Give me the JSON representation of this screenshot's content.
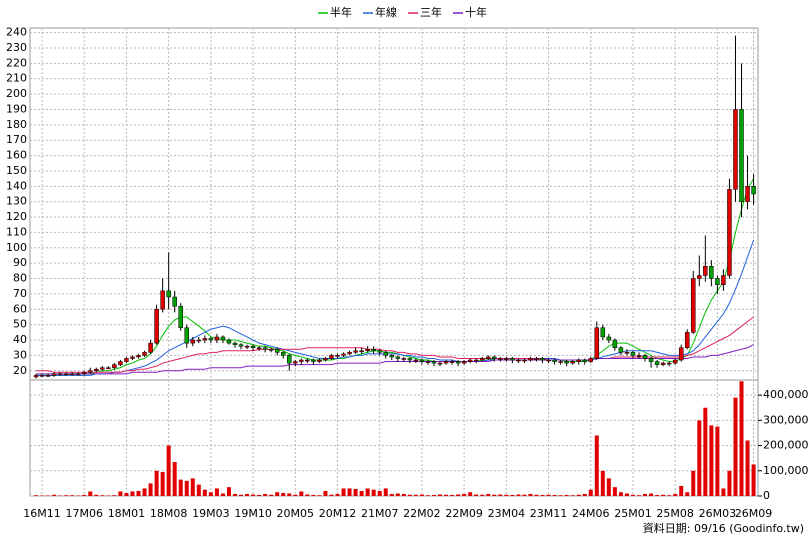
{
  "chart_data": [
    {
      "type": "candlestick",
      "legend": "top",
      "grid": true,
      "up_color": "#e00000",
      "down_color": "#00a000",
      "wick_color": "#000000",
      "note": "資料日期: 09/16 (Goodinfo.tw)",
      "categories": [
        null,
        "16M11",
        null,
        null,
        null,
        null,
        null,
        null,
        "17M06",
        null,
        null,
        null,
        null,
        null,
        null,
        "18M01",
        null,
        null,
        null,
        null,
        null,
        null,
        "18M08",
        null,
        null,
        null,
        null,
        null,
        null,
        "19M03",
        null,
        null,
        null,
        null,
        null,
        null,
        "19M10",
        null,
        null,
        null,
        null,
        null,
        null,
        "20M05",
        null,
        null,
        null,
        null,
        null,
        null,
        "20M12",
        null,
        null,
        null,
        null,
        null,
        null,
        "21M07",
        null,
        null,
        null,
        null,
        null,
        null,
        "22M02",
        null,
        null,
        null,
        null,
        null,
        null,
        "22M09",
        null,
        null,
        null,
        null,
        null,
        null,
        "23M04",
        null,
        null,
        null,
        null,
        null,
        null,
        "23M11",
        null,
        null,
        null,
        null,
        null,
        null,
        "24M06",
        null,
        null,
        null,
        null,
        null,
        null,
        "25M01",
        null,
        null,
        null,
        null,
        null,
        null,
        "25M08",
        null,
        null,
        null,
        null,
        null,
        null,
        "26M03",
        null,
        null,
        null,
        null,
        null,
        "26M09"
      ],
      "open": [
        16,
        17,
        17,
        17,
        18,
        18,
        18,
        18,
        18,
        19,
        20,
        21,
        22,
        22,
        24,
        26,
        28,
        29,
        30,
        32,
        38,
        60,
        72,
        68,
        62,
        48,
        38,
        40,
        40,
        41,
        40,
        42,
        40,
        38,
        37,
        36,
        36,
        35,
        35,
        34,
        34,
        32,
        30,
        25,
        26,
        27,
        27,
        26,
        27,
        28,
        30,
        30,
        31,
        32,
        33,
        33,
        34,
        33,
        32,
        30,
        29,
        28,
        28,
        27,
        27,
        26,
        26,
        25,
        25,
        26,
        26,
        25,
        26,
        27,
        27,
        28,
        29,
        28,
        28,
        28,
        27,
        27,
        27,
        28,
        28,
        27,
        27,
        26,
        26,
        25,
        26,
        27,
        26,
        28,
        48,
        42,
        40,
        35,
        32,
        32,
        30,
        30,
        28,
        26,
        24,
        25,
        25,
        27,
        35,
        45,
        80,
        82,
        88,
        80,
        76,
        82,
        138,
        190,
        130,
        140
      ],
      "high": [
        18,
        18,
        18,
        19,
        19,
        19,
        19,
        19,
        20,
        22,
        22,
        23,
        23,
        25,
        27,
        29,
        30,
        31,
        33,
        40,
        63,
        80,
        97,
        72,
        64,
        50,
        42,
        42,
        43,
        42,
        44,
        43,
        41,
        39,
        38,
        37,
        37,
        36,
        36,
        35,
        35,
        33,
        31,
        27,
        28,
        28,
        28,
        28,
        29,
        31,
        31,
        32,
        33,
        35,
        35,
        36,
        36,
        34,
        33,
        31,
        30,
        29,
        29,
        28,
        28,
        27,
        27,
        26,
        27,
        27,
        27,
        27,
        28,
        28,
        29,
        30,
        30,
        29,
        29,
        29,
        28,
        28,
        29,
        29,
        29,
        28,
        28,
        27,
        27,
        27,
        28,
        28,
        29,
        52,
        50,
        44,
        41,
        36,
        34,
        33,
        32,
        31,
        29,
        27,
        26,
        26,
        28,
        37,
        47,
        85,
        95,
        108,
        92,
        82,
        86,
        145,
        238,
        220,
        160,
        148
      ],
      "low": [
        15,
        16,
        16,
        16,
        17,
        17,
        17,
        17,
        17,
        18,
        19,
        20,
        21,
        21,
        23,
        25,
        27,
        28,
        29,
        31,
        37,
        58,
        60,
        58,
        46,
        35,
        36,
        38,
        38,
        38,
        38,
        38,
        37,
        35,
        34,
        34,
        33,
        33,
        32,
        32,
        30,
        28,
        20,
        23,
        24,
        25,
        24,
        25,
        26,
        27,
        28,
        29,
        30,
        31,
        31,
        32,
        31,
        30,
        28,
        27,
        26,
        26,
        25,
        25,
        24,
        24,
        23,
        23,
        24,
        24,
        23,
        24,
        25,
        25,
        26,
        27,
        26,
        26,
        26,
        25,
        25,
        25,
        26,
        26,
        25,
        25,
        24,
        24,
        23,
        24,
        24,
        24,
        25,
        27,
        40,
        38,
        33,
        30,
        30,
        28,
        28,
        26,
        22,
        22,
        23,
        23,
        24,
        26,
        34,
        44,
        75,
        78,
        75,
        70,
        72,
        80,
        130,
        120,
        125,
        128
      ],
      "close": [
        17,
        17,
        17,
        18,
        18,
        18,
        18,
        18,
        19,
        20,
        21,
        22,
        22,
        24,
        26,
        28,
        29,
        30,
        32,
        38,
        60,
        72,
        68,
        62,
        48,
        38,
        40,
        40,
        41,
        40,
        42,
        40,
        38,
        37,
        36,
        36,
        35,
        35,
        34,
        34,
        32,
        30,
        25,
        26,
        27,
        27,
        26,
        27,
        28,
        30,
        30,
        31,
        32,
        33,
        33,
        34,
        33,
        32,
        30,
        29,
        28,
        28,
        27,
        27,
        26,
        26,
        25,
        25,
        26,
        26,
        25,
        26,
        27,
        27,
        28,
        29,
        28,
        28,
        28,
        27,
        27,
        27,
        28,
        28,
        27,
        27,
        26,
        26,
        25,
        26,
        27,
        26,
        28,
        48,
        42,
        40,
        35,
        32,
        32,
        30,
        30,
        28,
        26,
        24,
        25,
        25,
        27,
        35,
        45,
        80,
        82,
        88,
        80,
        76,
        82,
        138,
        190,
        130,
        140,
        135
      ],
      "series": [
        {
          "name": "半年",
          "color": "#00c000",
          "values": [
            17,
            17,
            17,
            17,
            17,
            17,
            18,
            18,
            18,
            18,
            19,
            20,
            20,
            21,
            22,
            24,
            25,
            27,
            28,
            31,
            36,
            43,
            49,
            53,
            55,
            55,
            52,
            49,
            46,
            42,
            41,
            40,
            40,
            40,
            39,
            38,
            37,
            36,
            36,
            35,
            34,
            33,
            31,
            30,
            29,
            28,
            27,
            27,
            27,
            27,
            28,
            28,
            29,
            30,
            31,
            32,
            33,
            33,
            32,
            32,
            31,
            30,
            29,
            28,
            27,
            27,
            26,
            26,
            26,
            26,
            26,
            26,
            26,
            26,
            27,
            27,
            28,
            28,
            28,
            28,
            28,
            28,
            28,
            28,
            27,
            27,
            27,
            27,
            26,
            26,
            26,
            26,
            27,
            30,
            33,
            36,
            38,
            38,
            38,
            36,
            34,
            32,
            30,
            28,
            27,
            26,
            26,
            28,
            30,
            38,
            48,
            58,
            66,
            72,
            78,
            92,
            110,
            125,
            138,
            145
          ]
        },
        {
          "name": "年線",
          "color": "#2060e0",
          "values": [
            17,
            17,
            17,
            17,
            17,
            17,
            17,
            17,
            17,
            17,
            18,
            18,
            18,
            19,
            19,
            20,
            21,
            22,
            23,
            25,
            27,
            30,
            33,
            35,
            37,
            39,
            41,
            43,
            45,
            47,
            48,
            49,
            48,
            46,
            44,
            42,
            40,
            38,
            37,
            36,
            35,
            34,
            33,
            32,
            31,
            30,
            29,
            28,
            28,
            28,
            28,
            29,
            29,
            30,
            30,
            31,
            31,
            31,
            31,
            31,
            31,
            30,
            30,
            29,
            29,
            28,
            28,
            27,
            27,
            27,
            26,
            26,
            26,
            26,
            26,
            27,
            27,
            27,
            27,
            27,
            27,
            27,
            27,
            28,
            28,
            28,
            28,
            27,
            27,
            27,
            27,
            27,
            27,
            28,
            29,
            30,
            31,
            32,
            33,
            33,
            33,
            33,
            33,
            32,
            31,
            30,
            30,
            30,
            31,
            33,
            37,
            42,
            47,
            52,
            57,
            64,
            73,
            83,
            94,
            105
          ]
        },
        {
          "name": "三年",
          "color": "#e02060",
          "values": [
            20,
            20,
            20,
            19,
            19,
            19,
            19,
            19,
            19,
            19,
            19,
            19,
            19,
            19,
            19,
            20,
            20,
            21,
            21,
            22,
            23,
            25,
            26,
            27,
            28,
            29,
            30,
            31,
            31,
            32,
            32,
            33,
            33,
            33,
            33,
            33,
            33,
            34,
            34,
            34,
            34,
            34,
            34,
            34,
            34,
            35,
            35,
            35,
            35,
            35,
            35,
            35,
            35,
            35,
            35,
            34,
            34,
            34,
            33,
            33,
            32,
            32,
            31,
            31,
            30,
            30,
            30,
            29,
            29,
            29,
            28,
            28,
            28,
            28,
            28,
            28,
            28,
            28,
            28,
            28,
            28,
            28,
            28,
            28,
            28,
            27,
            27,
            27,
            27,
            27,
            27,
            27,
            27,
            28,
            28,
            28,
            29,
            29,
            29,
            29,
            29,
            29,
            29,
            29,
            29,
            29,
            29,
            29,
            30,
            31,
            33,
            35,
            37,
            39,
            41,
            43,
            46,
            49,
            52,
            55
          ]
        },
        {
          "name": "十年",
          "color": "#8020c0",
          "values": [
            18,
            18,
            18,
            18,
            18,
            18,
            18,
            18,
            18,
            18,
            18,
            18,
            18,
            18,
            18,
            18,
            19,
            19,
            19,
            19,
            19,
            20,
            20,
            20,
            20,
            21,
            21,
            21,
            21,
            22,
            22,
            22,
            22,
            22,
            22,
            23,
            23,
            23,
            23,
            23,
            23,
            23,
            24,
            24,
            24,
            24,
            24,
            24,
            24,
            24,
            25,
            25,
            25,
            25,
            25,
            25,
            25,
            25,
            26,
            26,
            26,
            26,
            26,
            26,
            26,
            26,
            26,
            26,
            26,
            26,
            26,
            26,
            26,
            26,
            26,
            26,
            27,
            27,
            27,
            27,
            27,
            27,
            27,
            27,
            27,
            27,
            27,
            27,
            27,
            27,
            27,
            27,
            27,
            28,
            28,
            28,
            28,
            28,
            28,
            28,
            28,
            28,
            28,
            28,
            28,
            28,
            28,
            28,
            28,
            29,
            29,
            29,
            30,
            30,
            31,
            32,
            33,
            34,
            35,
            37
          ]
        }
      ],
      "ylim": [
        14,
        243
      ],
      "yticks": [
        20,
        30,
        40,
        50,
        60,
        70,
        80,
        90,
        100,
        110,
        120,
        130,
        140,
        150,
        160,
        170,
        180,
        190,
        200,
        210,
        220,
        230,
        240
      ]
    },
    {
      "type": "bar",
      "color": "#e00000",
      "grid": true,
      "values": [
        3000,
        2000,
        2000,
        5000,
        2000,
        3000,
        3000,
        2000,
        4000,
        18000,
        5000,
        3000,
        2000,
        3000,
        18000,
        12000,
        18000,
        20000,
        30000,
        50000,
        100000,
        95000,
        200000,
        135000,
        65000,
        60000,
        70000,
        45000,
        25000,
        15000,
        30000,
        10000,
        35000,
        8000,
        5000,
        8000,
        6000,
        4000,
        8000,
        5000,
        15000,
        12000,
        10000,
        5000,
        18000,
        6000,
        4000,
        3000,
        20000,
        5000,
        8000,
        30000,
        30000,
        28000,
        20000,
        30000,
        25000,
        20000,
        30000,
        8000,
        10000,
        8000,
        5000,
        5000,
        6000,
        3000,
        4000,
        6000,
        5000,
        4000,
        6000,
        8000,
        15000,
        6000,
        5000,
        8000,
        5000,
        6000,
        5000,
        4000,
        6000,
        5000,
        8000,
        5000,
        4000,
        5000,
        4000,
        3000,
        4000,
        3000,
        5000,
        8000,
        25000,
        240000,
        100000,
        70000,
        35000,
        15000,
        10000,
        5000,
        3000,
        8000,
        10000,
        4000,
        5000,
        3000,
        8000,
        40000,
        15000,
        100000,
        300000,
        350000,
        280000,
        275000,
        30000,
        100000,
        390000,
        455000,
        220000,
        125000
      ],
      "ylim": [
        0,
        460000
      ],
      "yticks": [
        0,
        {
          "value": 100000,
          "label": "100,000"
        },
        {
          "value": 200000,
          "label": "200,000"
        },
        {
          "value": 300000,
          "label": "300,000"
        },
        {
          "value": 400000,
          "label": "400,000"
        }
      ]
    }
  ]
}
